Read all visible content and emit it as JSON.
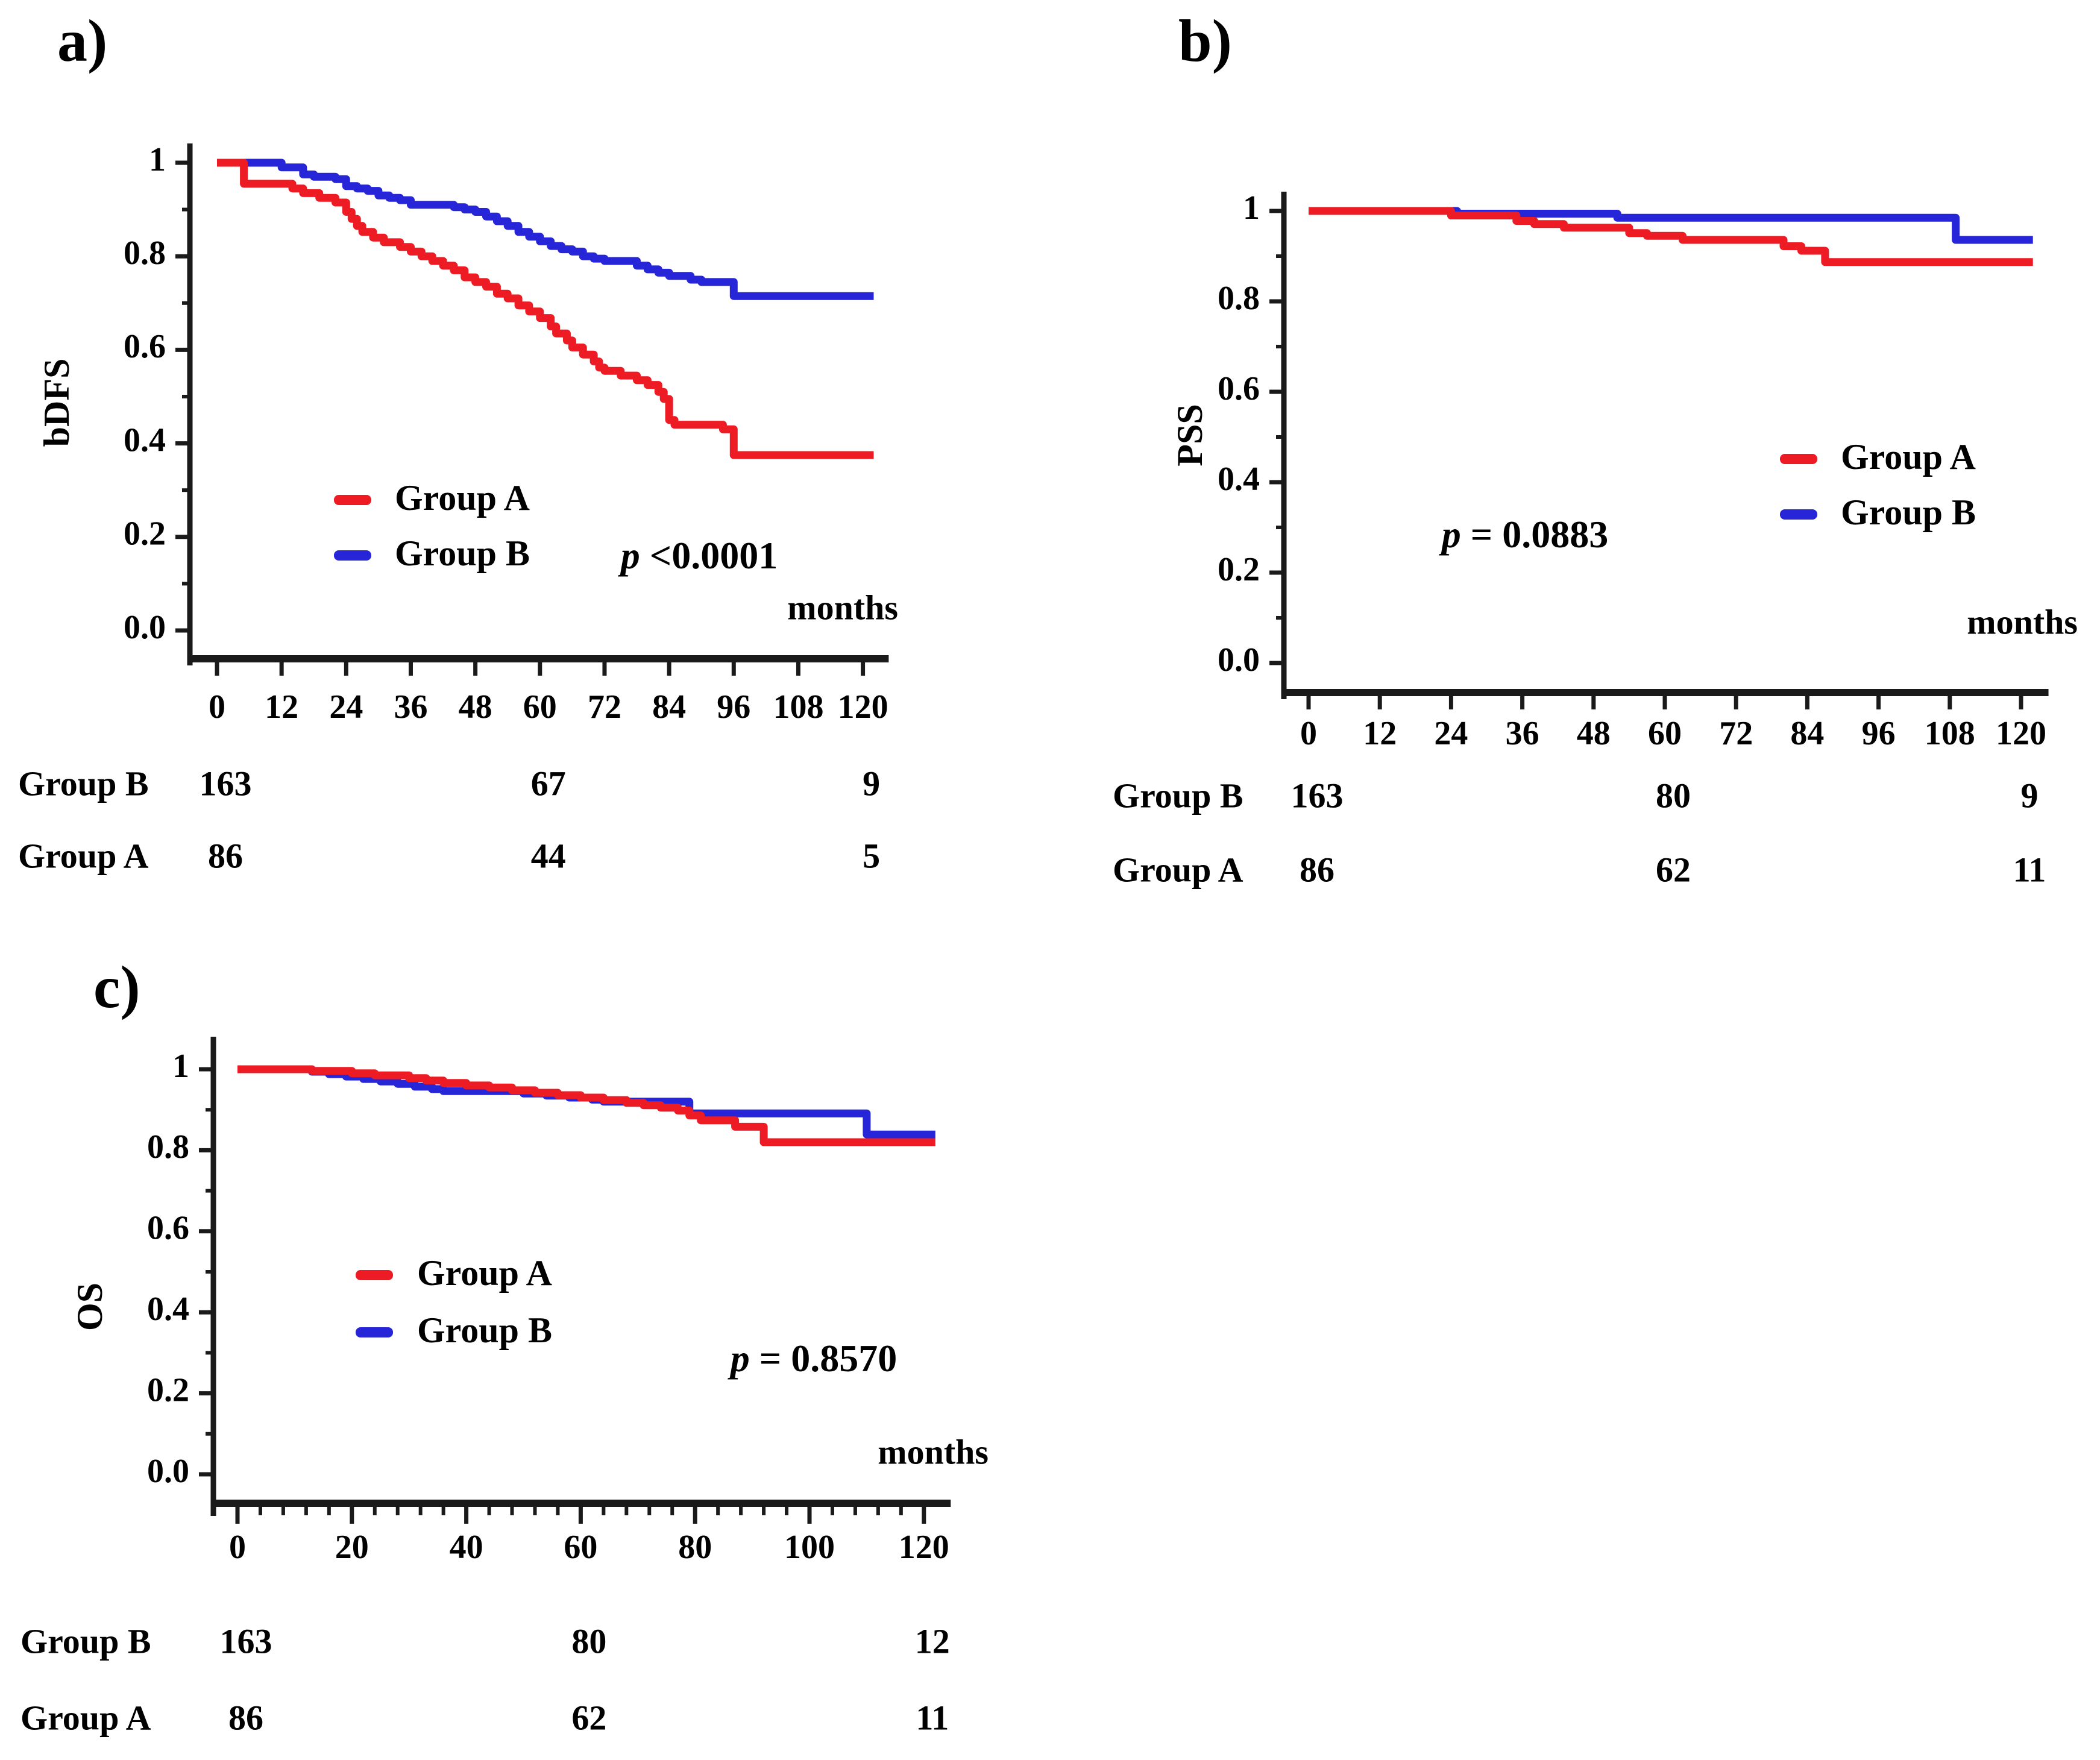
{
  "chart_data": {
    "type": "line",
    "subtype": "kaplan_meier_step_survival",
    "x_unit": "months",
    "accent_colors": {
      "group_a_red": "#ed1c24",
      "group_b_blue": "#2626d8",
      "axis_black": "#1a1a1a"
    },
    "panels": [
      {
        "id": "a",
        "label": "a)",
        "ylabel": "bDFS",
        "xlabel": "months",
        "p_value": "p <0.0001",
        "x_axis": {
          "range": [
            0,
            123
          ],
          "ticks": [
            0,
            12,
            24,
            36,
            48,
            60,
            72,
            84,
            96,
            108,
            120
          ],
          "minor_step": 0
        },
        "y_axis": {
          "range": [
            0,
            1
          ],
          "tick_values": [
            1,
            0.8,
            0.6,
            0.4,
            0.2,
            0
          ],
          "tick_labels": [
            "1",
            "0.8",
            "0.6",
            "0.4",
            "0.2",
            "0.0"
          ],
          "minor_ticks": [
            0.9,
            0.7,
            0.5,
            0.3,
            0.1
          ]
        },
        "legend": [
          {
            "label": "Group A",
            "color": "#ed1c24"
          },
          {
            "label": "Group B",
            "color": "#2626d8"
          }
        ],
        "series": [
          {
            "name": "Group A",
            "color": "#ed1c24",
            "points": [
              [
                0,
                1
              ],
              [
                5,
                0.955
              ],
              [
                14,
                0.945
              ],
              [
                16,
                0.935
              ],
              [
                19,
                0.925
              ],
              [
                22,
                0.915
              ],
              [
                24,
                0.895
              ],
              [
                25,
                0.88
              ],
              [
                26,
                0.865
              ],
              [
                27,
                0.852
              ],
              [
                29,
                0.84
              ],
              [
                31,
                0.83
              ],
              [
                34,
                0.82
              ],
              [
                36,
                0.81
              ],
              [
                38,
                0.8
              ],
              [
                40,
                0.79
              ],
              [
                42,
                0.78
              ],
              [
                44,
                0.77
              ],
              [
                46,
                0.755
              ],
              [
                48,
                0.745
              ],
              [
                50,
                0.735
              ],
              [
                52,
                0.72
              ],
              [
                54,
                0.71
              ],
              [
                56,
                0.695
              ],
              [
                58,
                0.682
              ],
              [
                60,
                0.668
              ],
              [
                62,
                0.65
              ],
              [
                63,
                0.635
              ],
              [
                65,
                0.62
              ],
              [
                66,
                0.605
              ],
              [
                68,
                0.59
              ],
              [
                70,
                0.575
              ],
              [
                71,
                0.562
              ],
              [
                72,
                0.555
              ],
              [
                75,
                0.545
              ],
              [
                78,
                0.535
              ],
              [
                80,
                0.525
              ],
              [
                82,
                0.51
              ],
              [
                83,
                0.495
              ],
              [
                84,
                0.45
              ],
              [
                85,
                0.44
              ],
              [
                94,
                0.43
              ],
              [
                96,
                0.375
              ],
              [
                122,
                0.375
              ]
            ]
          },
          {
            "name": "Group B",
            "color": "#2626d8",
            "points": [
              [
                0,
                1
              ],
              [
                12,
                0.99
              ],
              [
                16,
                0.975
              ],
              [
                18,
                0.97
              ],
              [
                22,
                0.965
              ],
              [
                24,
                0.95
              ],
              [
                26,
                0.945
              ],
              [
                28,
                0.94
              ],
              [
                30,
                0.93
              ],
              [
                32,
                0.925
              ],
              [
                34,
                0.92
              ],
              [
                36,
                0.91
              ],
              [
                44,
                0.905
              ],
              [
                46,
                0.9
              ],
              [
                48,
                0.895
              ],
              [
                50,
                0.885
              ],
              [
                52,
                0.875
              ],
              [
                54,
                0.865
              ],
              [
                56,
                0.852
              ],
              [
                58,
                0.842
              ],
              [
                60,
                0.832
              ],
              [
                62,
                0.822
              ],
              [
                64,
                0.815
              ],
              [
                66,
                0.81
              ],
              [
                68,
                0.8
              ],
              [
                70,
                0.795
              ],
              [
                72,
                0.79
              ],
              [
                78,
                0.78
              ],
              [
                80,
                0.772
              ],
              [
                82,
                0.765
              ],
              [
                84,
                0.758
              ],
              [
                88,
                0.75
              ],
              [
                90,
                0.745
              ],
              [
                96,
                0.715
              ],
              [
                122,
                0.715
              ]
            ]
          }
        ],
        "at_risk": {
          "column_months": [
            0,
            60,
            120
          ],
          "rows": [
            {
              "label": "Group B",
              "values": [
                "163",
                "67",
                "9"
              ]
            },
            {
              "label": "Group A",
              "values": [
                "86",
                "44",
                "5"
              ]
            }
          ]
        }
      },
      {
        "id": "b",
        "label": "b)",
        "ylabel": "PSS",
        "xlabel": "months",
        "p_value": "p = 0.0883",
        "x_axis": {
          "range": [
            0,
            123
          ],
          "ticks": [
            0,
            12,
            24,
            36,
            48,
            60,
            72,
            84,
            96,
            108,
            120
          ],
          "minor_step": 0
        },
        "y_axis": {
          "range": [
            0,
            1
          ],
          "tick_values": [
            1,
            0.8,
            0.6,
            0.4,
            0.2,
            0
          ],
          "tick_labels": [
            "1",
            "0.8",
            "0.6",
            "0.4",
            "0.2",
            "0.0"
          ],
          "minor_ticks": [
            0.9,
            0.7,
            0.5,
            0.3,
            0.1
          ]
        },
        "legend": [
          {
            "label": "Group A",
            "color": "#ed1c24"
          },
          {
            "label": "Group B",
            "color": "#2626d8"
          }
        ],
        "series": [
          {
            "name": "Group A",
            "color": "#ed1c24",
            "points": [
              [
                0,
                1
              ],
              [
                24,
                0.99
              ],
              [
                35,
                0.978
              ],
              [
                38,
                0.971
              ],
              [
                43,
                0.963
              ],
              [
                54,
                0.951
              ],
              [
                57,
                0.945
              ],
              [
                63,
                0.936
              ],
              [
                80,
                0.922
              ],
              [
                83,
                0.912
              ],
              [
                87,
                0.887
              ],
              [
                122,
                0.887
              ]
            ]
          },
          {
            "name": "Group B",
            "color": "#2626d8",
            "points": [
              [
                0,
                1
              ],
              [
                25,
                0.994
              ],
              [
                52,
                0.985
              ],
              [
                109,
                0.936
              ],
              [
                122,
                0.936
              ]
            ]
          }
        ],
        "at_risk": {
          "column_months": [
            0,
            60,
            120
          ],
          "rows": [
            {
              "label": "Group B",
              "values": [
                "163",
                "80",
                "9"
              ]
            },
            {
              "label": "Group A",
              "values": [
                "86",
                "62",
                "11"
              ]
            }
          ]
        }
      },
      {
        "id": "c",
        "label": "c)",
        "ylabel": "OS",
        "xlabel": "months",
        "p_value": "p = 0.8570",
        "x_axis": {
          "range": [
            0,
            123
          ],
          "ticks": [
            0,
            20,
            40,
            60,
            80,
            100,
            120
          ],
          "minor_step": 4
        },
        "y_axis": {
          "range": [
            0,
            1
          ],
          "tick_values": [
            1,
            0.8,
            0.6,
            0.4,
            0.2,
            0
          ],
          "tick_labels": [
            "1",
            "0.8",
            "0.6",
            "0.4",
            "0.2",
            "0.0"
          ],
          "minor_ticks": [
            0.9,
            0.7,
            0.5,
            0.3,
            0.1
          ]
        },
        "legend": [
          {
            "label": "Group A",
            "color": "#ed1c24"
          },
          {
            "label": "Group B",
            "color": "#2626d8"
          }
        ],
        "series": [
          {
            "name": "Group A",
            "color": "#ed1c24",
            "points": [
              [
                0,
                1
              ],
              [
                13,
                0.996
              ],
              [
                20,
                0.99
              ],
              [
                24,
                0.985
              ],
              [
                30,
                0.978
              ],
              [
                33,
                0.972
              ],
              [
                36,
                0.966
              ],
              [
                40,
                0.96
              ],
              [
                44,
                0.955
              ],
              [
                48,
                0.948
              ],
              [
                52,
                0.942
              ],
              [
                56,
                0.936
              ],
              [
                60,
                0.93
              ],
              [
                64,
                0.924
              ],
              [
                68,
                0.917
              ],
              [
                71,
                0.911
              ],
              [
                74,
                0.905
              ],
              [
                77,
                0.898
              ],
              [
                79,
                0.886
              ],
              [
                81,
                0.874
              ],
              [
                87,
                0.858
              ],
              [
                92,
                0.82
              ],
              [
                122,
                0.82
              ]
            ]
          },
          {
            "name": "Group B",
            "color": "#2626d8",
            "points": [
              [
                0,
                1
              ],
              [
                13,
                0.994
              ],
              [
                16,
                0.988
              ],
              [
                19,
                0.982
              ],
              [
                22,
                0.976
              ],
              [
                25,
                0.97
              ],
              [
                28,
                0.964
              ],
              [
                31,
                0.957
              ],
              [
                34,
                0.951
              ],
              [
                36,
                0.946
              ],
              [
                50,
                0.94
              ],
              [
                54,
                0.935
              ],
              [
                58,
                0.93
              ],
              [
                62,
                0.925
              ],
              [
                64,
                0.92
              ],
              [
                79,
                0.891
              ],
              [
                110,
                0.839
              ],
              [
                122,
                0.839
              ]
            ]
          }
        ],
        "at_risk": {
          "column_months": [
            0,
            60,
            120
          ],
          "rows": [
            {
              "label": "Group B",
              "values": [
                "163",
                "80",
                "12"
              ]
            },
            {
              "label": "Group A",
              "values": [
                "86",
                "62",
                "11"
              ]
            }
          ]
        }
      }
    ]
  }
}
